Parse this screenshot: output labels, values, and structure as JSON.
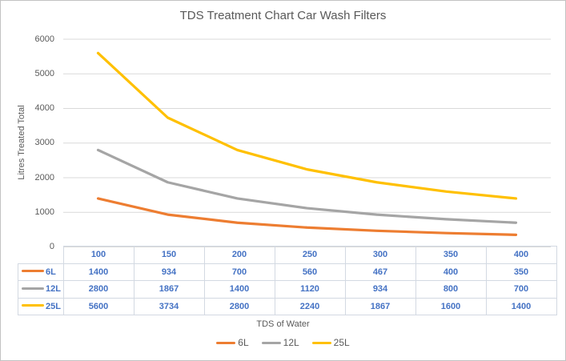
{
  "colors": {
    "background": "#ffffff",
    "frame_border": "#c3c3c3",
    "gridline": "#d9d9d9",
    "axis_text": "#595959",
    "title_text": "#595959",
    "table_border": "#d3d9e2",
    "table_text": "#4472c4"
  },
  "chart_data": {
    "type": "line",
    "title": "TDS Treatment Chart Car Wash Filters",
    "xlabel": "TDS of Water",
    "ylabel": "Litres Treated Total",
    "categories": [
      "100",
      "150",
      "200",
      "250",
      "300",
      "350",
      "400"
    ],
    "series": [
      {
        "name": "6L",
        "color": "#ED7D31",
        "values": [
          1400,
          934,
          700,
          560,
          467,
          400,
          350
        ]
      },
      {
        "name": "12L",
        "color": "#A5A5A5",
        "values": [
          2800,
          1867,
          1400,
          1120,
          934,
          800,
          700
        ]
      },
      {
        "name": "25L",
        "color": "#FFC000",
        "values": [
          5600,
          3734,
          2800,
          2240,
          1867,
          1600,
          1400
        ]
      }
    ],
    "ylim": [
      0,
      6000
    ],
    "ytick_step": 1000,
    "yticks": [
      "0",
      "1000",
      "2000",
      "3000",
      "4000",
      "5000",
      "6000"
    ],
    "grid": true,
    "legend_position": "bottom",
    "has_data_table": true
  }
}
